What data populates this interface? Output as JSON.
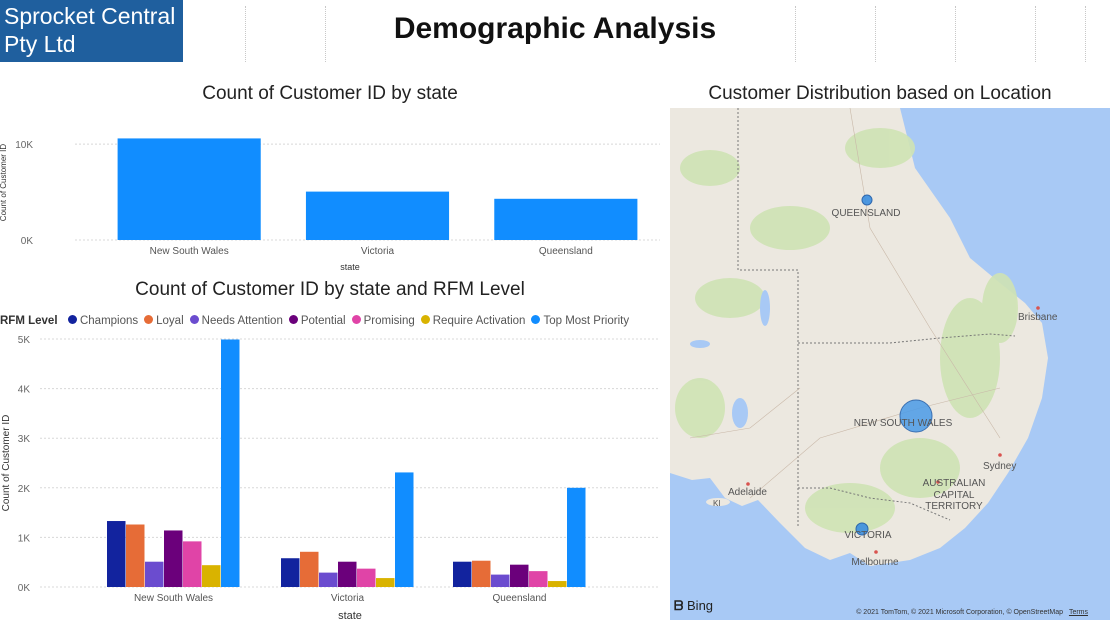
{
  "report": {
    "company_name": "Sprocket Central Pty Ltd",
    "page_title": "Demographic Analysis"
  },
  "colors": {
    "accent": "#118DFF",
    "logo_bg": "#1f5f9e",
    "map_water": "#a8c9f5",
    "map_land": "#ece8e0"
  },
  "chart_data": [
    {
      "type": "bar",
      "title": "Count of Customer ID by state",
      "xlabel": "state",
      "ylabel": "Count of Customer ID",
      "categories": [
        "New South Wales",
        "Victoria",
        "Queensland"
      ],
      "values": [
        10600,
        5050,
        4300
      ],
      "ylim": [
        0,
        12000
      ],
      "yticks": [
        {
          "value": 0,
          "label": "0K"
        },
        {
          "value": 10000,
          "label": "10K"
        }
      ],
      "grid": true,
      "color": "#118DFF"
    },
    {
      "type": "bar",
      "title": "Count of Customer ID by state and RFM Level",
      "xlabel": "state",
      "ylabel": "Count of Customer ID",
      "legend_title": "RFM Level",
      "legend_position": "top-left",
      "categories": [
        "New South Wales",
        "Victoria",
        "Queensland"
      ],
      "ylim": [
        0,
        5000
      ],
      "yticks": [
        {
          "value": 0,
          "label": "0K"
        },
        {
          "value": 1000,
          "label": "1K"
        },
        {
          "value": 2000,
          "label": "2K"
        },
        {
          "value": 3000,
          "label": "3K"
        },
        {
          "value": 4000,
          "label": "4K"
        },
        {
          "value": 5000,
          "label": "5K"
        }
      ],
      "grid": true,
      "series": [
        {
          "name": "Champions",
          "color": "#12239E",
          "values": [
            1330,
            580,
            510
          ]
        },
        {
          "name": "Loyal",
          "color": "#E66C37",
          "values": [
            1260,
            710,
            530
          ]
        },
        {
          "name": "Needs Attention",
          "color": "#6B4CCF",
          "values": [
            510,
            290,
            250
          ]
        },
        {
          "name": "Potential",
          "color": "#6B007B",
          "values": [
            1140,
            510,
            450
          ]
        },
        {
          "name": "Promising",
          "color": "#E044A7",
          "values": [
            920,
            370,
            320
          ]
        },
        {
          "name": "Require Activation",
          "color": "#D9B300",
          "values": [
            440,
            180,
            120
          ]
        },
        {
          "name": "Top Most Priority",
          "color": "#118DFF",
          "values": [
            4990,
            2310,
            2000
          ]
        }
      ]
    }
  ],
  "map": {
    "title": "Customer Distribution based on Location",
    "labels": {
      "queensland": "QUEENSLAND",
      "brisbane": "Brisbane",
      "nsw": "NEW SOUTH WALES",
      "sydney": "Sydney",
      "act_line1": "AUSTRALIAN",
      "act_line2": "CAPITAL",
      "act_line3": "TERRITORY",
      "adelaide": "Adelaide",
      "victoria": "VICTORIA",
      "melbourne": "Melbourne",
      "ki": "KI"
    },
    "provider": "Bing",
    "attribution": "© 2021 TomTom, © 2021 Microsoft Corporation, © OpenStreetMap",
    "terms": "Terms"
  }
}
